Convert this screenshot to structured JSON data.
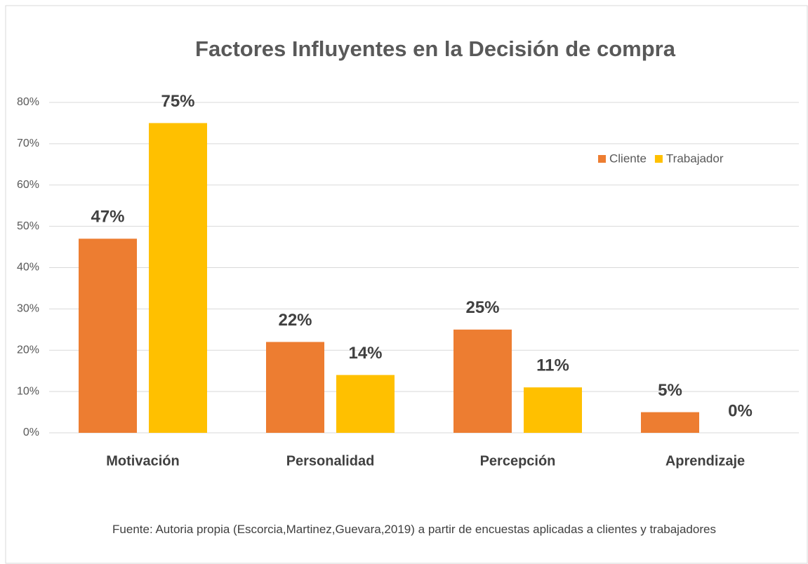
{
  "chart_data": {
    "type": "bar",
    "title": "Factores Influyentes en la Decisión de compra",
    "categories": [
      "Motivación",
      "Personalidad",
      "Percepción",
      "Aprendizaje"
    ],
    "series": [
      {
        "name": "Cliente",
        "color": "#ed7d31",
        "values": [
          47,
          22,
          25,
          5
        ],
        "value_labels": [
          "47%",
          "22%",
          "25%",
          "5%"
        ]
      },
      {
        "name": "Trabajador",
        "color": "#ffc000",
        "values": [
          75,
          14,
          11,
          0
        ],
        "value_labels": [
          "75%",
          "14%",
          "11%",
          "0%"
        ]
      }
    ],
    "ylim": [
      0,
      80
    ],
    "yticks": [
      {
        "value": 0,
        "label": "0%"
      },
      {
        "value": 10,
        "label": "10%"
      },
      {
        "value": 20,
        "label": "20%"
      },
      {
        "value": 30,
        "label": "30%"
      },
      {
        "value": 40,
        "label": "40%"
      },
      {
        "value": 50,
        "label": "50%"
      },
      {
        "value": 60,
        "label": "60%"
      },
      {
        "value": 70,
        "label": "70%"
      },
      {
        "value": 80,
        "label": "80%"
      }
    ],
    "grid": true,
    "legend": "upper right",
    "note": "Fuente: Autoria propia (Escorcia,Martinez,Guevara,2019) a partir de encuestas aplicadas a clientes y trabajadores"
  }
}
